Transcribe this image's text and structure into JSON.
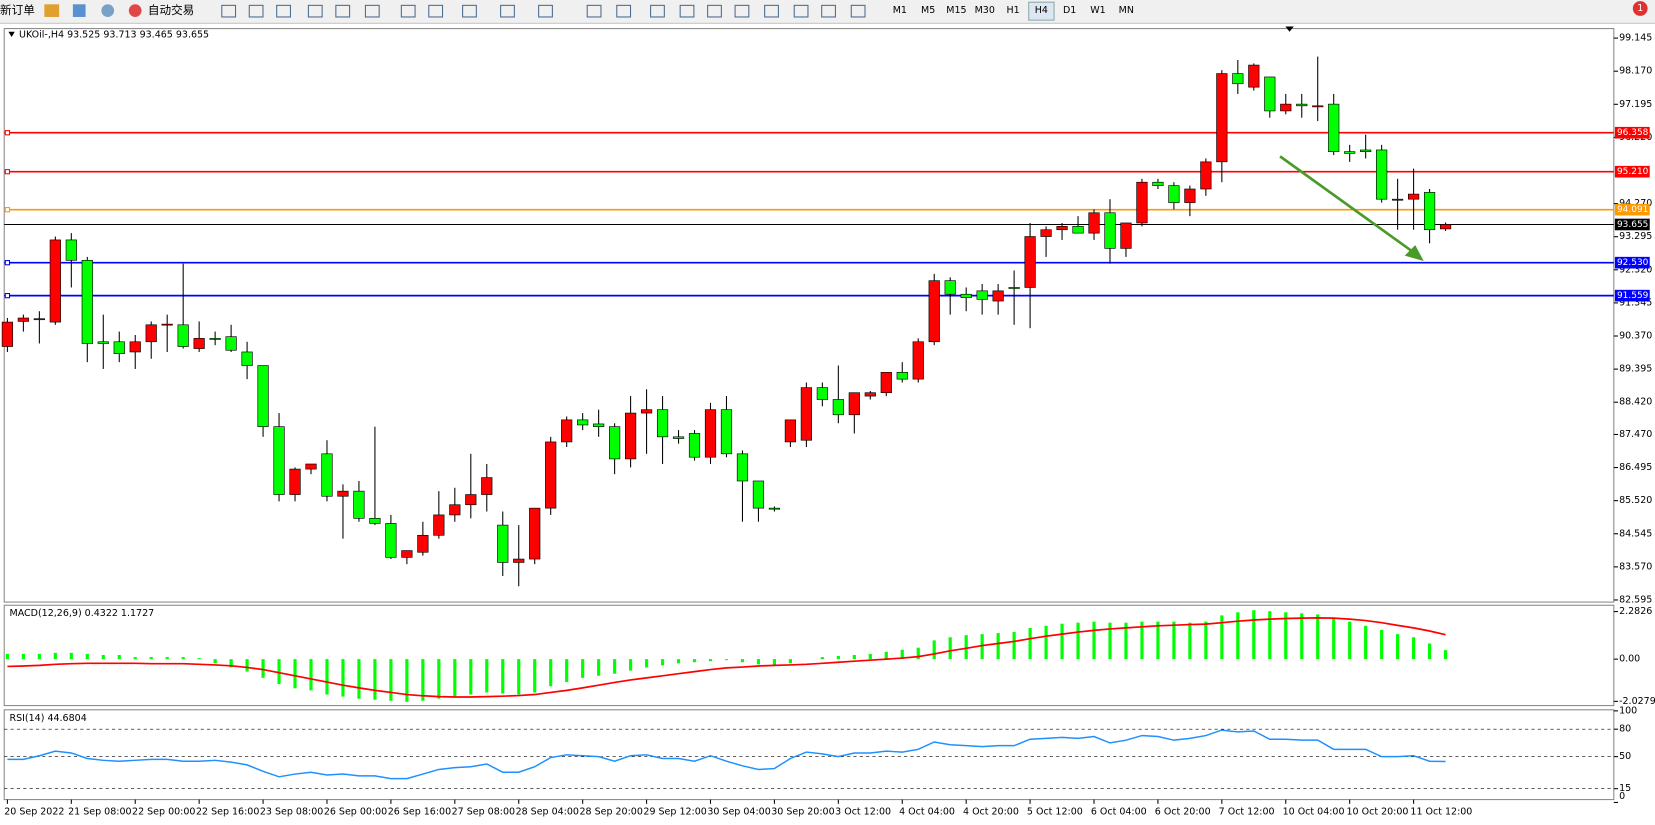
{
  "toolbar": {
    "new_order": "新订单",
    "auto_trading": "自动交易",
    "timeframes": [
      "M1",
      "M5",
      "M15",
      "M30",
      "H1",
      "H4",
      "D1",
      "W1",
      "MN"
    ],
    "badge": "1"
  },
  "chart": {
    "header": "UKOil-,H4  93.525 93.713 93.465 93.655",
    "price_lim": [
      82.595,
      99.145
    ],
    "price_ticks": [
      99.145,
      {
        "value": 98.17,
        "label": "98.170"
      },
      97.195,
      {
        "value": 96.22,
        "label": "96.220"
      },
      {
        "value": 94.27,
        "label": "94.270"
      },
      93.295,
      {
        "value": 92.32,
        "label": "92.320"
      },
      91.345,
      {
        "value": 90.37,
        "label": "90.370"
      },
      89.395,
      {
        "value": 88.42,
        "label": "88.420"
      },
      {
        "value": 87.47,
        "label": "87.470"
      },
      86.495,
      {
        "value": 85.52,
        "label": "85.520"
      },
      84.545,
      {
        "value": 83.57,
        "label": "83.570"
      },
      82.595
    ],
    "levels": [
      {
        "value": 96.358,
        "label": "96.358",
        "color": "#ff0000"
      },
      {
        "value": 95.21,
        "label": "95.210",
        "color": "#ff0000"
      },
      {
        "value": 94.091,
        "label": "94.091",
        "color": "#ff9900"
      },
      {
        "value": 93.655,
        "label": "93.655",
        "color": "#000000"
      },
      {
        "value": 92.53,
        "label": "92.530",
        "color": "#0000ff"
      },
      {
        "value": 91.559,
        "label": "91.559",
        "color": "#0000ff"
      }
    ],
    "candles": [
      [
        90.06,
        90.9,
        89.9,
        90.78
      ],
      [
        90.8,
        91.0,
        90.5,
        90.9
      ],
      [
        90.86,
        91.1,
        90.15,
        90.88
      ],
      [
        90.78,
        93.3,
        90.7,
        93.2
      ],
      [
        93.2,
        93.4,
        91.8,
        92.6
      ],
      [
        92.6,
        92.7,
        89.6,
        90.15
      ],
      [
        90.2,
        91.0,
        89.4,
        90.15
      ],
      [
        90.2,
        90.5,
        89.6,
        89.85
      ],
      [
        89.9,
        90.4,
        89.4,
        90.2
      ],
      [
        90.2,
        90.8,
        89.7,
        90.7
      ],
      [
        90.7,
        91.0,
        89.9,
        90.72
      ],
      [
        90.7,
        92.5,
        90.0,
        90.06
      ],
      [
        90.0,
        90.8,
        89.9,
        90.3
      ],
      [
        90.3,
        90.5,
        90.1,
        90.28
      ],
      [
        90.35,
        90.7,
        89.9,
        89.95
      ],
      [
        89.9,
        90.2,
        89.1,
        89.5
      ],
      [
        89.5,
        89.5,
        87.4,
        87.7
      ],
      [
        87.7,
        88.1,
        85.5,
        85.7
      ],
      [
        85.7,
        86.5,
        85.5,
        86.45
      ],
      [
        86.45,
        86.6,
        86.3,
        86.6
      ],
      [
        86.9,
        87.3,
        85.5,
        85.65
      ],
      [
        85.65,
        86.0,
        84.4,
        85.8
      ],
      [
        85.8,
        86.1,
        84.9,
        85.0
      ],
      [
        85.0,
        87.7,
        84.8,
        84.85
      ],
      [
        84.85,
        85.1,
        83.8,
        83.85
      ],
      [
        83.85,
        84.0,
        83.65,
        84.05
      ],
      [
        84.0,
        84.9,
        83.9,
        84.5
      ],
      [
        84.5,
        85.8,
        84.4,
        85.1
      ],
      [
        85.1,
        85.9,
        84.9,
        85.4
      ],
      [
        85.4,
        86.9,
        85.0,
        85.7
      ],
      [
        85.7,
        86.6,
        85.2,
        86.2
      ],
      [
        84.8,
        85.2,
        83.3,
        83.7
      ],
      [
        83.7,
        84.8,
        83.0,
        83.8
      ],
      [
        83.8,
        85.3,
        83.65,
        85.3
      ],
      [
        85.3,
        87.4,
        85.1,
        87.25
      ],
      [
        87.25,
        88.0,
        87.1,
        87.9
      ],
      [
        87.9,
        88.1,
        87.6,
        87.75
      ],
      [
        87.78,
        88.2,
        87.4,
        87.7
      ],
      [
        87.7,
        87.8,
        86.3,
        86.75
      ],
      [
        86.75,
        88.6,
        86.5,
        88.1
      ],
      [
        88.1,
        88.8,
        86.9,
        88.2
      ],
      [
        88.2,
        88.6,
        86.6,
        87.4
      ],
      [
        87.4,
        87.6,
        87.2,
        87.35
      ],
      [
        87.5,
        87.6,
        86.7,
        86.8
      ],
      [
        86.8,
        88.4,
        86.6,
        88.2
      ],
      [
        88.2,
        88.6,
        86.8,
        86.9
      ],
      [
        86.9,
        87.0,
        84.9,
        86.1
      ],
      [
        86.1,
        86.1,
        84.9,
        85.3
      ],
      [
        85.3,
        85.35,
        85.2,
        85.28
      ],
      [
        87.25,
        87.9,
        87.1,
        87.9
      ],
      [
        87.3,
        89.0,
        87.1,
        88.85
      ],
      [
        88.85,
        89.0,
        88.3,
        88.5
      ],
      [
        88.5,
        89.5,
        87.8,
        88.05
      ],
      [
        88.05,
        88.7,
        87.5,
        88.7
      ],
      [
        88.6,
        88.75,
        88.5,
        88.7
      ],
      [
        88.7,
        89.3,
        88.6,
        89.3
      ],
      [
        89.3,
        89.6,
        89.0,
        89.1
      ],
      [
        89.1,
        90.3,
        89.0,
        90.2
      ],
      [
        90.2,
        92.2,
        90.1,
        92.0
      ],
      [
        92.0,
        92.1,
        91.0,
        91.6
      ],
      [
        91.6,
        91.8,
        91.1,
        91.5
      ],
      [
        91.7,
        91.9,
        91.0,
        91.45
      ],
      [
        91.4,
        91.9,
        91.0,
        91.7
      ],
      [
        91.8,
        92.3,
        90.7,
        91.79
      ],
      [
        91.8,
        93.7,
        90.6,
        93.3
      ],
      [
        93.3,
        93.6,
        92.7,
        93.5
      ],
      [
        93.5,
        93.7,
        93.2,
        93.6
      ],
      [
        93.6,
        93.9,
        93.4,
        93.4
      ],
      [
        93.4,
        94.1,
        93.2,
        94.0
      ],
      [
        94.0,
        94.4,
        92.5,
        92.95
      ],
      [
        92.95,
        93.7,
        92.7,
        93.7
      ],
      [
        93.7,
        95.0,
        93.6,
        94.9
      ],
      [
        94.9,
        95.0,
        94.7,
        94.8
      ],
      [
        94.8,
        94.9,
        94.1,
        94.3
      ],
      [
        94.3,
        94.8,
        93.9,
        94.7
      ],
      [
        94.7,
        95.6,
        94.5,
        95.5
      ],
      [
        95.5,
        98.2,
        94.9,
        98.1
      ],
      [
        98.1,
        98.5,
        97.5,
        97.8
      ],
      [
        97.7,
        98.4,
        97.6,
        98.35
      ],
      [
        98.0,
        98.0,
        96.8,
        97.0
      ],
      [
        97.0,
        97.5,
        96.9,
        97.2
      ],
      [
        97.2,
        97.5,
        96.8,
        97.15
      ],
      [
        97.15,
        98.6,
        96.7,
        97.15
      ],
      [
        97.2,
        97.5,
        95.7,
        95.8
      ],
      [
        95.8,
        96.0,
        95.5,
        95.75
      ],
      [
        95.85,
        96.3,
        95.6,
        95.8
      ],
      [
        95.85,
        96.0,
        94.3,
        94.4
      ],
      [
        94.4,
        95.0,
        93.5,
        94.4
      ],
      [
        94.4,
        95.3,
        93.5,
        94.55
      ],
      [
        94.6,
        94.7,
        93.1,
        93.5
      ],
      [
        93.525,
        93.713,
        93.465,
        93.655
      ]
    ],
    "time_labels": [
      "20 Sep 2022",
      "21 Sep 08:00",
      "22 Sep 00:00",
      "22 Sep 16:00",
      "23 Sep 08:00",
      "26 Sep 00:00",
      "26 Sep 16:00",
      "27 Sep 08:00",
      "28 Sep 04:00",
      "28 Sep 20:00",
      "29 Sep 12:00",
      "30 Sep 04:00",
      "30 Sep 20:00",
      "3 Oct 12:00",
      "4 Oct 04:00",
      "4 Oct 20:00",
      "5 Oct 12:00",
      "6 Oct 04:00",
      "6 Oct 20:00",
      "7 Oct 12:00",
      "10 Oct 04:00",
      "10 Oct 20:00",
      "11 Oct 12:00"
    ],
    "macd": {
      "label": "MACD(12,26,9) 0.4322 1.1727",
      "lim": [
        -2.0279,
        2.2826
      ],
      "ticks": [
        2.2826,
        {
          "value": 0,
          "label": "0.00"
        },
        -2.0279
      ],
      "hist_color": "#00ff00",
      "signal_color": "#ff0000",
      "hist": [
        0.25,
        0.25,
        0.25,
        0.3,
        0.3,
        0.25,
        0.2,
        0.2,
        0.1,
        0.1,
        0.1,
        0.1,
        0.05,
        -0.2,
        -0.4,
        -0.6,
        -0.9,
        -1.2,
        -1.4,
        -1.5,
        -1.7,
        -1.8,
        -1.9,
        -1.95,
        -2.0,
        -2.05,
        -2.0,
        -1.9,
        -1.8,
        -1.7,
        -1.6,
        -1.65,
        -1.7,
        -1.6,
        -1.3,
        -1.1,
        -0.9,
        -0.8,
        -0.7,
        -0.55,
        -0.4,
        -0.3,
        -0.2,
        -0.15,
        -0.1,
        -0.05,
        -0.15,
        -0.25,
        -0.3,
        -0.2,
        0.0,
        0.1,
        0.15,
        0.2,
        0.25,
        0.35,
        0.45,
        0.55,
        0.9,
        1.05,
        1.15,
        1.2,
        1.25,
        1.3,
        1.5,
        1.6,
        1.7,
        1.75,
        1.8,
        1.75,
        1.75,
        1.8,
        1.8,
        1.8,
        1.75,
        1.8,
        2.1,
        2.25,
        2.35,
        2.3,
        2.25,
        2.2,
        2.15,
        2.0,
        1.8,
        1.6,
        1.4,
        1.2,
        1.05,
        0.75,
        0.4322
      ],
      "signal": [
        -0.35,
        -0.33,
        -0.3,
        -0.25,
        -0.22,
        -0.2,
        -0.2,
        -0.2,
        -0.2,
        -0.22,
        -0.22,
        -0.22,
        -0.25,
        -0.28,
        -0.32,
        -0.4,
        -0.5,
        -0.65,
        -0.8,
        -0.95,
        -1.1,
        -1.25,
        -1.38,
        -1.5,
        -1.6,
        -1.7,
        -1.76,
        -1.8,
        -1.82,
        -1.82,
        -1.8,
        -1.78,
        -1.75,
        -1.7,
        -1.6,
        -1.5,
        -1.38,
        -1.25,
        -1.12,
        -1.0,
        -0.9,
        -0.8,
        -0.7,
        -0.6,
        -0.5,
        -0.42,
        -0.38,
        -0.33,
        -0.3,
        -0.28,
        -0.25,
        -0.2,
        -0.15,
        -0.1,
        -0.05,
        0.0,
        0.05,
        0.12,
        0.25,
        0.4,
        0.52,
        0.65,
        0.75,
        0.85,
        0.98,
        1.1,
        1.2,
        1.3,
        1.38,
        1.45,
        1.5,
        1.55,
        1.6,
        1.63,
        1.66,
        1.68,
        1.75,
        1.82,
        1.88,
        1.92,
        1.95,
        1.97,
        1.98,
        1.97,
        1.92,
        1.85,
        1.75,
        1.62,
        1.5,
        1.35,
        1.1727
      ]
    },
    "rsi": {
      "label": "RSI(14) 44.6804",
      "lim": [
        0,
        100
      ],
      "ticks": [
        100,
        80,
        50,
        15,
        0
      ],
      "color": "#1e90ff",
      "values": [
        47,
        47,
        51,
        56,
        54,
        48,
        46,
        45,
        46,
        47,
        47,
        45,
        45,
        46,
        44,
        41,
        34,
        28,
        31,
        33,
        30,
        31,
        29,
        29,
        26,
        26,
        31,
        36,
        38,
        39,
        42,
        33,
        33,
        39,
        49,
        52,
        51,
        50,
        45,
        51,
        52,
        48,
        48,
        45,
        51,
        45,
        40,
        36,
        37,
        48,
        55,
        53,
        50,
        54,
        54,
        56,
        55,
        58,
        66,
        63,
        62,
        61,
        62,
        62,
        69,
        70,
        71,
        70,
        72,
        65,
        68,
        73,
        72,
        68,
        70,
        73,
        79,
        77,
        78,
        69,
        69,
        68,
        68,
        58,
        58,
        58,
        50,
        50,
        51,
        45,
        44.6804
      ]
    }
  }
}
